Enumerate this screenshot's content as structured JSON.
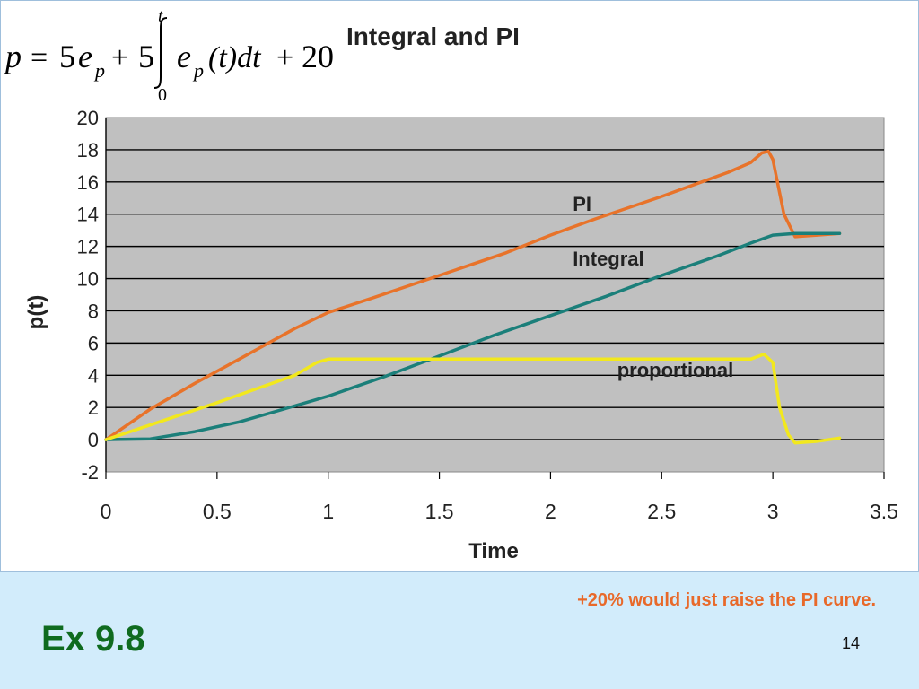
{
  "formula": {
    "lhs": "p",
    "eq": "=",
    "coef1": "5",
    "e": "e",
    "sub_p": "p",
    "plus1": "+",
    "coef2": "5",
    "upper": "t",
    "lower": "0",
    "integrand_tail": "(t)dt",
    "plus2": "+",
    "const": "20"
  },
  "chart_data": {
    "type": "line",
    "title": "Integral and PI",
    "xlabel": "Time",
    "ylabel": "p(t)",
    "xlim": [
      0,
      3.5
    ],
    "ylim": [
      -2,
      20
    ],
    "xticks": [
      "0",
      "0.5",
      "1",
      "1.5",
      "2",
      "2.5",
      "3",
      "3.5"
    ],
    "yticks": [
      "-2",
      "0",
      "2",
      "4",
      "6",
      "8",
      "10",
      "12",
      "14",
      "16",
      "18",
      "20"
    ],
    "grid": true,
    "plot_bg": "#c0c0c0",
    "series": [
      {
        "name": "PI",
        "color": "#e8732a",
        "x": [
          0,
          0.2,
          0.4,
          0.6,
          0.85,
          1.0,
          1.2,
          1.5,
          1.8,
          2.0,
          2.2,
          2.5,
          2.8,
          2.9,
          2.95,
          2.98,
          3.0,
          3.05,
          3.1,
          3.2,
          3.3
        ],
        "y": [
          0,
          1.9,
          3.5,
          5.0,
          6.9,
          7.9,
          8.8,
          10.2,
          11.6,
          12.7,
          13.7,
          15.1,
          16.6,
          17.2,
          17.8,
          17.9,
          17.4,
          14.0,
          12.6,
          12.7,
          12.8
        ]
      },
      {
        "name": "Integral",
        "color": "#1b7f7a",
        "x": [
          0,
          0.2,
          0.4,
          0.6,
          0.8,
          1.0,
          1.25,
          1.5,
          1.75,
          2.0,
          2.25,
          2.5,
          2.75,
          2.9,
          3.0,
          3.1,
          3.2,
          3.3
        ],
        "y": [
          0,
          0.05,
          0.5,
          1.1,
          1.9,
          2.7,
          3.9,
          5.2,
          6.5,
          7.7,
          8.9,
          10.2,
          11.4,
          12.2,
          12.7,
          12.8,
          12.8,
          12.8
        ]
      },
      {
        "name": "proportional",
        "color": "#f2e81d",
        "x": [
          0,
          0.5,
          0.85,
          0.95,
          1.0,
          1.5,
          2.0,
          2.5,
          2.9,
          2.96,
          3.0,
          3.03,
          3.07,
          3.1,
          3.2,
          3.3
        ],
        "y": [
          0,
          2.3,
          4.0,
          4.8,
          5.0,
          5.0,
          5.0,
          5.0,
          5.0,
          5.3,
          4.8,
          2.0,
          0.3,
          -0.2,
          -0.1,
          0.1
        ]
      }
    ],
    "annotations": [
      {
        "text": "PI",
        "x": 2.1,
        "y": 14.2
      },
      {
        "text": "Integral",
        "x": 2.1,
        "y": 10.8
      },
      {
        "text": "proportional",
        "x": 2.3,
        "y": 3.9
      }
    ]
  },
  "note": "+20% would just raise the PI curve.",
  "example_label": "Ex 9.8",
  "page_number": "14"
}
